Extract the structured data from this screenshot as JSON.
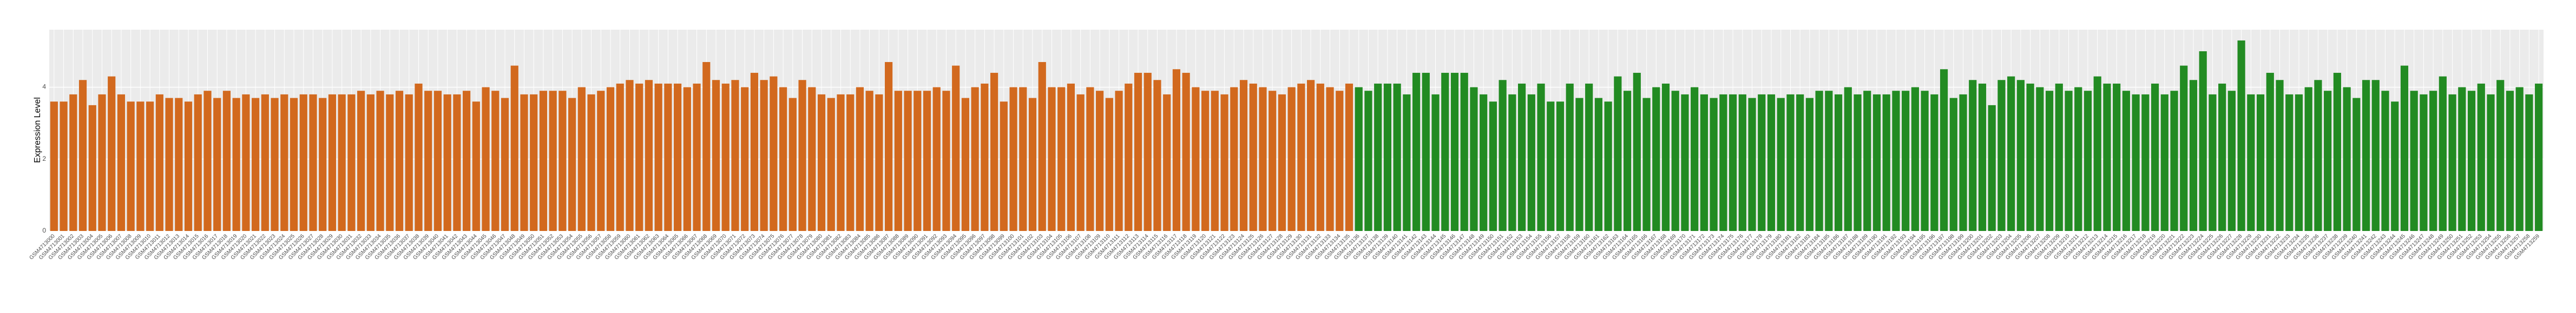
{
  "chart_data": {
    "type": "bar",
    "y_label": "Expression Level",
    "ylim": [
      0,
      5.6
    ],
    "yticks": [
      0,
      2,
      4
    ],
    "grid": true,
    "categories": [
      "GSM4713000",
      "GSM4713001",
      "GSM4713002",
      "GSM4713003",
      "GSM4713004",
      "GSM4713005",
      "GSM4713006",
      "GSM4713007",
      "GSM4713008",
      "GSM4713009",
      "GSM4713010",
      "GSM4713011",
      "GSM4713012",
      "GSM4713013",
      "GSM4713014",
      "GSM4713015",
      "GSM4713016",
      "GSM4713017",
      "GSM4713018",
      "GSM4713019",
      "GSM4713020",
      "GSM4713021",
      "GSM4713022",
      "GSM4713023",
      "GSM4713024",
      "GSM4713025",
      "GSM4713026",
      "GSM4713027",
      "GSM4713028",
      "GSM4713029",
      "GSM4713030",
      "GSM4713031",
      "GSM4713032",
      "GSM4713033",
      "GSM4713034",
      "GSM4713035",
      "GSM4713036",
      "GSM4713037",
      "GSM4713038",
      "GSM4713039",
      "GSM4713040",
      "GSM4713041",
      "GSM4713042",
      "GSM4713043",
      "GSM4713044",
      "GSM4713045",
      "GSM4713046",
      "GSM4713047",
      "GSM4713048",
      "GSM4713049",
      "GSM4713050",
      "GSM4713051",
      "GSM4713052",
      "GSM4713053",
      "GSM4713054",
      "GSM4713055",
      "GSM4713056",
      "GSM4713057",
      "GSM4713058",
      "GSM4713059",
      "GSM4713060",
      "GSM4713061",
      "GSM4713062",
      "GSM4713063",
      "GSM4713064",
      "GSM4713065",
      "GSM4713066",
      "GSM4713067",
      "GSM4713068",
      "GSM4713069",
      "GSM4713070",
      "GSM4713071",
      "GSM4713072",
      "GSM4713073",
      "GSM4713074",
      "GSM4713075",
      "GSM4713076",
      "GSM4713077",
      "GSM4713078",
      "GSM4713079",
      "GSM4713080",
      "GSM4713081",
      "GSM4713082",
      "GSM4713083",
      "GSM4713084",
      "GSM4713085",
      "GSM4713086",
      "GSM4713087",
      "GSM4713088",
      "GSM4713089",
      "GSM4713090",
      "GSM4713091",
      "GSM4713092",
      "GSM4713093",
      "GSM4713094",
      "GSM4713095",
      "GSM4713096",
      "GSM4713097",
      "GSM4713098",
      "GSM4713099",
      "GSM4713100",
      "GSM4713101",
      "GSM4713102",
      "GSM4713103",
      "GSM4713104",
      "GSM4713105",
      "GSM4713106",
      "GSM4713107",
      "GSM4713108",
      "GSM4713109",
      "GSM4713110",
      "GSM4713111",
      "GSM4713112",
      "GSM4713113",
      "GSM4713114",
      "GSM4713115",
      "GSM4713116",
      "GSM4713117",
      "GSM4713118",
      "GSM4713119",
      "GSM4713120",
      "GSM4713121",
      "GSM4713122",
      "GSM4713123",
      "GSM4713124",
      "GSM4713125",
      "GSM4713126",
      "GSM4713127",
      "GSM4713128",
      "GSM4713129",
      "GSM4713130",
      "GSM4713131",
      "GSM4713132",
      "GSM4713133",
      "GSM4713134",
      "GSM4713135",
      "GSM4713136",
      "GSM4713137",
      "GSM4713138",
      "GSM4713139",
      "GSM4713140",
      "GSM4713141",
      "GSM4713142",
      "GSM4713143",
      "GSM4713144",
      "GSM4713145",
      "GSM4713146",
      "GSM4713147",
      "GSM4713148",
      "GSM4713149",
      "GSM4713150",
      "GSM4713151",
      "GSM4713152",
      "GSM4713153",
      "GSM4713154",
      "GSM4713155",
      "GSM4713156",
      "GSM4713157",
      "GSM4713158",
      "GSM4713159",
      "GSM4713160",
      "GSM4713161",
      "GSM4713162",
      "GSM4713163",
      "GSM4713164",
      "GSM4713165",
      "GSM4713166",
      "GSM4713167",
      "GSM4713168",
      "GSM4713169",
      "GSM4713170",
      "GSM4713171",
      "GSM4713172",
      "GSM4713173",
      "GSM4713174",
      "GSM4713175",
      "GSM4713176",
      "GSM4713177",
      "GSM4713178",
      "GSM4713179",
      "GSM4713180",
      "GSM4713181",
      "GSM4713182",
      "GSM4713183",
      "GSM4713184",
      "GSM4713185",
      "GSM4713186",
      "GSM4713187",
      "GSM4713188",
      "GSM4713189",
      "GSM4713190",
      "GSM4713191",
      "GSM4713192",
      "GSM4713193",
      "GSM4713194",
      "GSM4713195",
      "GSM4713196",
      "GSM4713197",
      "GSM4713198",
      "GSM4713199",
      "GSM4713200",
      "GSM4713201",
      "GSM4713202",
      "GSM4713203",
      "GSM4713204",
      "GSM4713205",
      "GSM4713206",
      "GSM4713207",
      "GSM4713208",
      "GSM4713209",
      "GSM4713210",
      "GSM4713211",
      "GSM4713212",
      "GSM4713213",
      "GSM4713214",
      "GSM4713215",
      "GSM4713216",
      "GSM4713217",
      "GSM4713218",
      "GSM4713219",
      "GSM4713220",
      "GSM4713221",
      "GSM4713222",
      "GSM4713223",
      "GSM4713224",
      "GSM4713225",
      "GSM4713226",
      "GSM4713227",
      "GSM4713228",
      "GSM4713229",
      "GSM4713230",
      "GSM4713231",
      "GSM4713232",
      "GSM4713233",
      "GSM4713234",
      "GSM4713235",
      "GSM4713236",
      "GSM4713237",
      "GSM4713238",
      "GSM4713239",
      "GSM4713240",
      "GSM4713241",
      "GSM4713242",
      "GSM4713243",
      "GSM4713244",
      "GSM4713245",
      "GSM4713246",
      "GSM4713247",
      "GSM4713248",
      "GSM4713249",
      "GSM4713250",
      "GSM4713251",
      "GSM4713252",
      "GSM4713253",
      "GSM4713254",
      "GSM4713255",
      "GSM4713256",
      "GSM4713257",
      "GSM4713258",
      "GSM4713259"
    ],
    "series": [
      {
        "color": "#d2691e",
        "values": [
          3.6,
          3.6,
          3.8,
          4.2,
          3.5,
          3.8,
          4.3,
          3.8,
          3.6,
          3.6,
          3.6,
          3.8,
          3.7,
          3.7,
          3.6,
          3.8,
          3.9,
          3.7,
          3.9,
          3.7,
          3.8,
          3.7,
          3.8,
          3.7,
          3.8,
          3.7,
          3.8,
          3.8,
          3.7,
          3.8,
          3.8,
          3.8,
          3.9,
          3.8,
          3.9,
          3.8,
          3.9,
          3.8,
          4.1,
          3.9,
          3.9,
          3.8,
          3.8,
          3.9,
          3.6,
          4.0,
          3.9,
          3.7,
          4.6,
          3.8,
          3.8,
          3.9,
          3.9,
          3.9,
          3.7,
          4.0,
          3.8,
          3.9,
          4.0,
          4.1,
          4.2,
          4.1,
          4.2,
          4.1,
          4.1,
          4.1,
          4.0,
          4.1,
          4.7,
          4.2,
          4.1,
          4.2,
          4.0,
          4.4,
          4.2,
          4.3,
          4.0,
          3.7,
          4.2,
          4.0,
          3.8,
          3.7,
          3.8,
          3.8,
          4.0,
          3.9,
          3.8,
          4.7,
          3.9,
          3.9,
          3.9,
          3.9,
          4.0,
          3.9,
          4.6,
          3.7,
          4.0,
          4.1,
          4.4,
          3.6,
          4.0,
          4.0,
          3.7,
          4.7,
          4.0,
          4.0,
          4.1,
          3.8,
          4.0,
          3.9,
          3.7,
          3.9,
          4.1,
          4.4,
          4.4,
          4.2,
          3.8,
          4.5,
          4.4,
          4.0,
          3.9,
          3.9,
          3.8,
          4.0,
          4.2,
          4.1,
          4.0,
          3.9,
          3.8,
          4.0,
          4.1,
          4.2,
          4.1,
          4.0,
          3.9,
          4.1,
          null,
          null,
          null,
          null,
          null,
          null,
          null,
          null,
          null,
          null,
          null,
          null,
          null,
          null,
          null,
          null,
          null,
          null,
          null,
          null,
          null,
          null,
          null,
          null,
          null,
          null,
          null,
          null,
          null,
          null,
          null,
          null,
          null,
          null,
          null,
          null,
          null,
          null,
          null,
          null,
          null,
          null,
          null,
          null,
          null,
          null,
          null,
          null,
          null,
          null,
          null,
          null,
          null,
          null,
          null,
          null,
          null,
          null,
          null,
          null,
          null,
          null,
          null,
          null,
          null,
          null,
          null,
          null,
          null,
          null,
          null,
          null,
          null,
          null,
          null,
          null,
          null,
          null,
          null,
          null,
          null,
          null,
          null,
          null,
          null,
          null,
          null,
          null,
          null,
          null,
          null,
          null,
          null,
          null,
          null,
          null,
          null,
          null,
          null,
          null,
          null,
          null,
          null,
          null,
          null,
          null,
          null,
          null,
          null,
          null,
          null,
          null,
          null,
          null,
          null,
          null,
          null,
          null,
          null,
          null,
          null,
          null,
          null,
          null
        ]
      },
      {
        "color": "#228b22",
        "values": [
          null,
          null,
          null,
          null,
          null,
          null,
          null,
          null,
          null,
          null,
          null,
          null,
          null,
          null,
          null,
          null,
          null,
          null,
          null,
          null,
          null,
          null,
          null,
          null,
          null,
          null,
          null,
          null,
          null,
          null,
          null,
          null,
          null,
          null,
          null,
          null,
          null,
          null,
          null,
          null,
          null,
          null,
          null,
          null,
          null,
          null,
          null,
          null,
          null,
          null,
          null,
          null,
          null,
          null,
          null,
          null,
          null,
          null,
          null,
          null,
          null,
          null,
          null,
          null,
          null,
          null,
          null,
          null,
          null,
          null,
          null,
          null,
          null,
          null,
          null,
          null,
          null,
          null,
          null,
          null,
          null,
          null,
          null,
          null,
          null,
          null,
          null,
          null,
          null,
          null,
          null,
          null,
          null,
          null,
          null,
          null,
          null,
          null,
          null,
          null,
          null,
          null,
          null,
          null,
          null,
          null,
          null,
          null,
          null,
          null,
          null,
          null,
          null,
          null,
          null,
          null,
          null,
          null,
          null,
          null,
          null,
          null,
          null,
          null,
          null,
          null,
          null,
          null,
          null,
          null,
          null,
          null,
          null,
          null,
          null,
          null,
          4.0,
          3.9,
          4.1,
          4.1,
          4.1,
          3.8,
          4.4,
          4.4,
          3.8,
          4.4,
          4.4,
          4.4,
          4.0,
          3.8,
          3.6,
          4.2,
          3.8,
          4.1,
          3.8,
          4.1,
          3.6,
          3.6,
          4.1,
          3.7,
          4.1,
          3.7,
          3.6,
          4.3,
          3.9,
          4.4,
          3.7,
          4.0,
          4.1,
          3.9,
          3.8,
          4.0,
          3.8,
          3.7,
          3.8,
          3.8,
          3.8,
          3.7,
          3.8,
          3.8,
          3.7,
          3.8,
          3.8,
          3.7,
          3.9,
          3.9,
          3.8,
          4.0,
          3.8,
          3.9,
          3.8,
          3.8,
          3.9,
          3.9,
          4.0,
          3.9,
          3.8,
          4.5,
          3.7,
          3.8,
          4.2,
          4.1,
          3.5,
          4.2,
          4.3,
          4.2,
          4.1,
          4.0,
          3.9,
          4.1,
          3.9,
          4.0,
          3.9,
          4.3,
          4.1,
          4.1,
          3.9,
          3.8,
          3.8,
          4.1,
          3.8,
          3.9,
          4.6,
          4.2,
          5.0,
          3.8,
          4.1,
          3.9,
          5.3,
          3.8,
          3.8,
          4.4,
          4.2,
          3.8,
          3.8,
          4.0,
          4.2,
          3.9,
          4.4,
          4.0,
          3.7,
          4.2,
          4.2,
          3.9,
          3.6,
          4.6,
          3.9,
          3.8,
          3.9,
          4.3,
          3.8,
          4.0,
          3.9,
          4.1,
          3.8,
          4.2,
          3.9,
          4.0,
          3.8,
          4.1
        ]
      }
    ]
  }
}
